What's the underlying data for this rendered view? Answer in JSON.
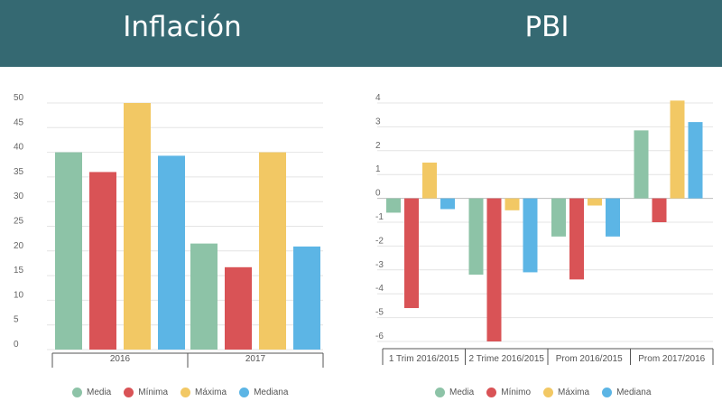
{
  "header": {
    "left_title": "Inflación",
    "right_title": "PBI",
    "background": "#356972"
  },
  "chart_data": [
    {
      "type": "bar",
      "title": "Inflación",
      "categories": [
        "2016",
        "2017"
      ],
      "series": [
        {
          "name": "Media",
          "color": "#8DC3A7",
          "values": [
            40,
            21.5
          ]
        },
        {
          "name": "Mínima",
          "color": "#D95356",
          "values": [
            36,
            16.7
          ]
        },
        {
          "name": "Máxima",
          "color": "#F2C864",
          "values": [
            50,
            40
          ]
        },
        {
          "name": "Mediana",
          "color": "#5CB5E5",
          "values": [
            39.3,
            20.9
          ]
        }
      ],
      "ylim": [
        0,
        50
      ],
      "yticks": [
        0,
        5,
        10,
        15,
        20,
        25,
        30,
        35,
        40,
        45,
        50
      ],
      "grid": true,
      "legend_position": "bottom"
    },
    {
      "type": "bar",
      "title": "PBI",
      "categories": [
        "1 Trim 2016/2015",
        "2 Trime 2016/2015",
        "Prom 2016/2015",
        "Prom 2017/2016"
      ],
      "series": [
        {
          "name": "Media",
          "color": "#8DC3A7",
          "values": [
            -0.6,
            -3.2,
            -1.6,
            2.85
          ]
        },
        {
          "name": "Mínimo",
          "color": "#D95356",
          "values": [
            -4.6,
            -6,
            -3.4,
            -1
          ]
        },
        {
          "name": "Máxima",
          "color": "#F2C864",
          "values": [
            1.5,
            -0.5,
            -0.3,
            4.1
          ]
        },
        {
          "name": "Mediana",
          "color": "#5CB5E5",
          "values": [
            -0.45,
            -3.1,
            -1.6,
            3.2
          ]
        }
      ],
      "ylim": [
        -6,
        4
      ],
      "yticks": [
        4,
        3,
        2,
        1,
        0,
        -1,
        -2,
        -3,
        -4,
        -5,
        -6
      ],
      "grid": true,
      "legend_position": "bottom"
    }
  ]
}
